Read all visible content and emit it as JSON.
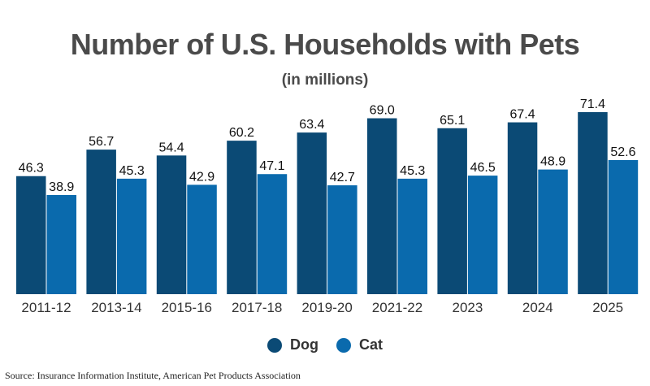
{
  "chart_data": {
    "type": "bar",
    "title": "Number of U.S. Households with Pets",
    "subtitle": "(in millions)",
    "categories": [
      "2011-12",
      "2013-14",
      "2015-16",
      "2017-18",
      "2019-20",
      "2021-22",
      "2023",
      "2024",
      "2025"
    ],
    "series": [
      {
        "name": "Dog",
        "color": "#0b4a75",
        "values": [
          46.3,
          56.7,
          54.4,
          60.2,
          63.4,
          69.0,
          65.1,
          67.4,
          71.4
        ]
      },
      {
        "name": "Cat",
        "color": "#0a6aad",
        "values": [
          38.9,
          45.3,
          42.9,
          47.1,
          42.7,
          45.3,
          46.5,
          48.9,
          52.6
        ]
      }
    ],
    "ylim": [
      0,
      71.4
    ],
    "grid": false,
    "legend_position": "bottom-center",
    "data_labels": true,
    "source": "Source: Insurance Information Institute, American Pet Products Association"
  }
}
